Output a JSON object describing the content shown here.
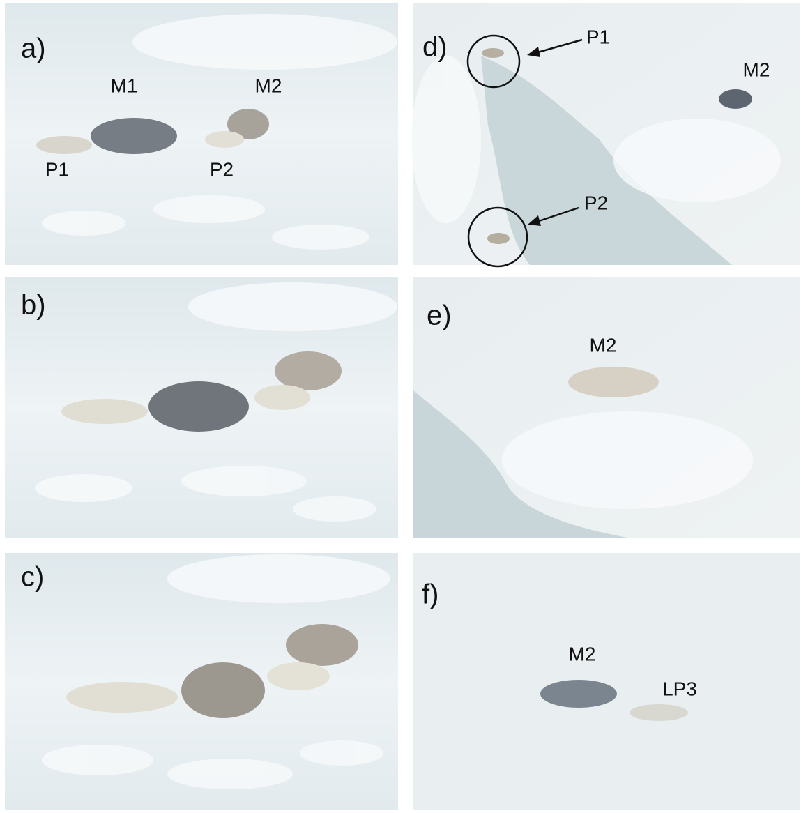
{
  "panels": [
    {
      "label": "a)",
      "annotations": [
        "M1",
        "M2",
        "P1",
        "P2"
      ]
    },
    {
      "label": "b)",
      "annotations": []
    },
    {
      "label": "c)",
      "annotations": []
    },
    {
      "label": "d)",
      "annotations": [
        "P1",
        "M2",
        "P2"
      ]
    },
    {
      "label": "e)",
      "annotations": [
        "M2"
      ]
    },
    {
      "label": "f)",
      "annotations": [
        "M2",
        "LP3"
      ]
    }
  ]
}
